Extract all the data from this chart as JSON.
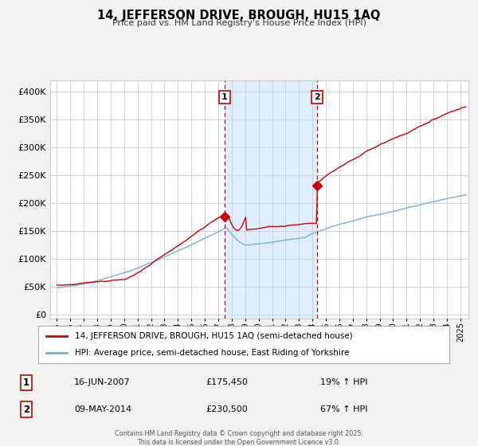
{
  "title": "14, JEFFERSON DRIVE, BROUGH, HU15 1AQ",
  "subtitle": "Price paid vs. HM Land Registry's House Price Index (HPI)",
  "legend_line1": "14, JEFFERSON DRIVE, BROUGH, HU15 1AQ (semi-detached house)",
  "legend_line2": "HPI: Average price, semi-detached house, East Riding of Yorkshire",
  "footnote": "Contains HM Land Registry data © Crown copyright and database right 2025.\nThis data is licensed under the Open Government Licence v3.0.",
  "transaction1_date": "16-JUN-2007",
  "transaction1_price": "£175,450",
  "transaction1_hpi": "19% ↑ HPI",
  "transaction2_date": "09-MAY-2014",
  "transaction2_price": "£230,500",
  "transaction2_hpi": "67% ↑ HPI",
  "vline1_x": 2007.46,
  "vline2_x": 2014.36,
  "shade_x1": 2007.46,
  "shade_x2": 2014.36,
  "red_color": "#cc0000",
  "blue_color": "#7ab0d4",
  "shade_color": "#deeeff",
  "background_color": "#f2f2f2",
  "plot_bg_color": "#ffffff",
  "grid_color": "#cccccc",
  "ylim_min": -8000,
  "ylim_max": 420000,
  "xlim_min": 1994.5,
  "xlim_max": 2025.6
}
